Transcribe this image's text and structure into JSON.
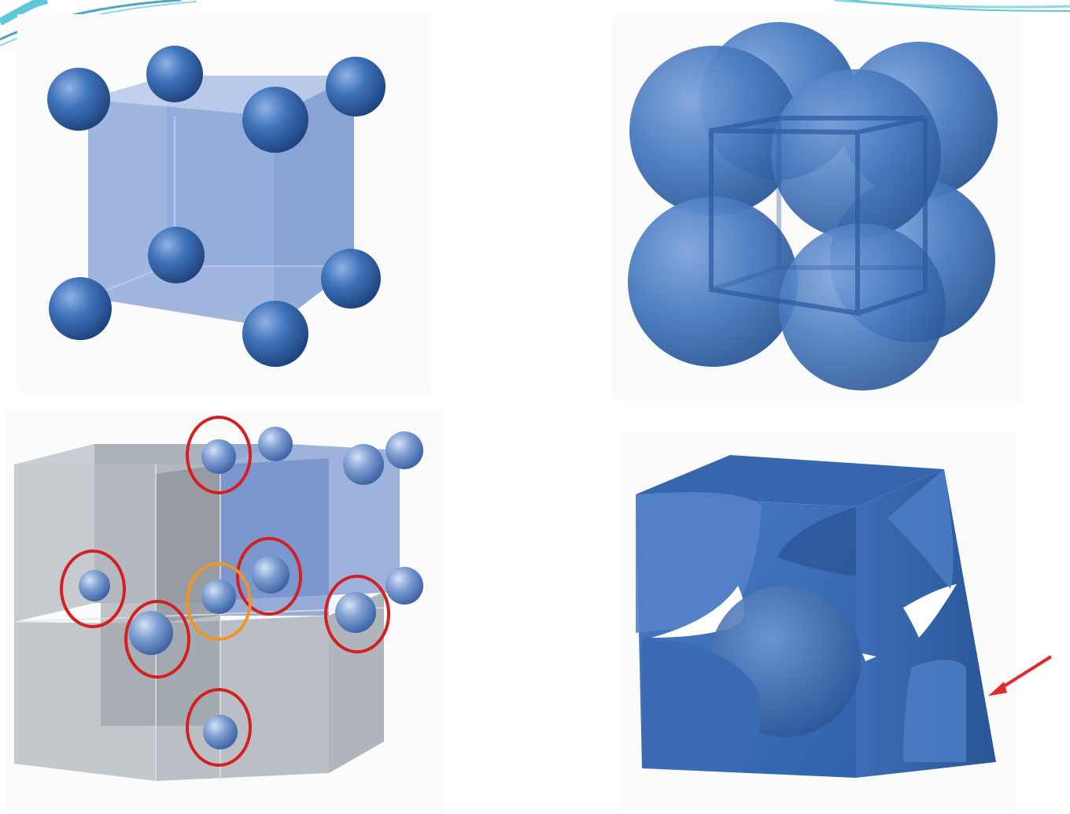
{
  "panels": [
    {
      "id": "simple-cubic-lattice-points",
      "description": ""
    },
    {
      "id": "simple-cubic-space-filling",
      "description": ""
    },
    {
      "id": "coordination-neighbors",
      "description": ""
    },
    {
      "id": "simple-cubic-unit-cell-cut",
      "description": ""
    }
  ],
  "colors": {
    "sphere_blue": "#3f73b9",
    "sphere_dark": "#2a5696",
    "cube_blue": "#7f9bd0",
    "cube_grey": "#9ea5ae",
    "neighbor_circle": "#d42020",
    "center_circle": "#f09428",
    "arrow": "#e02a2a",
    "accent_teal": "#5fc8d8"
  }
}
